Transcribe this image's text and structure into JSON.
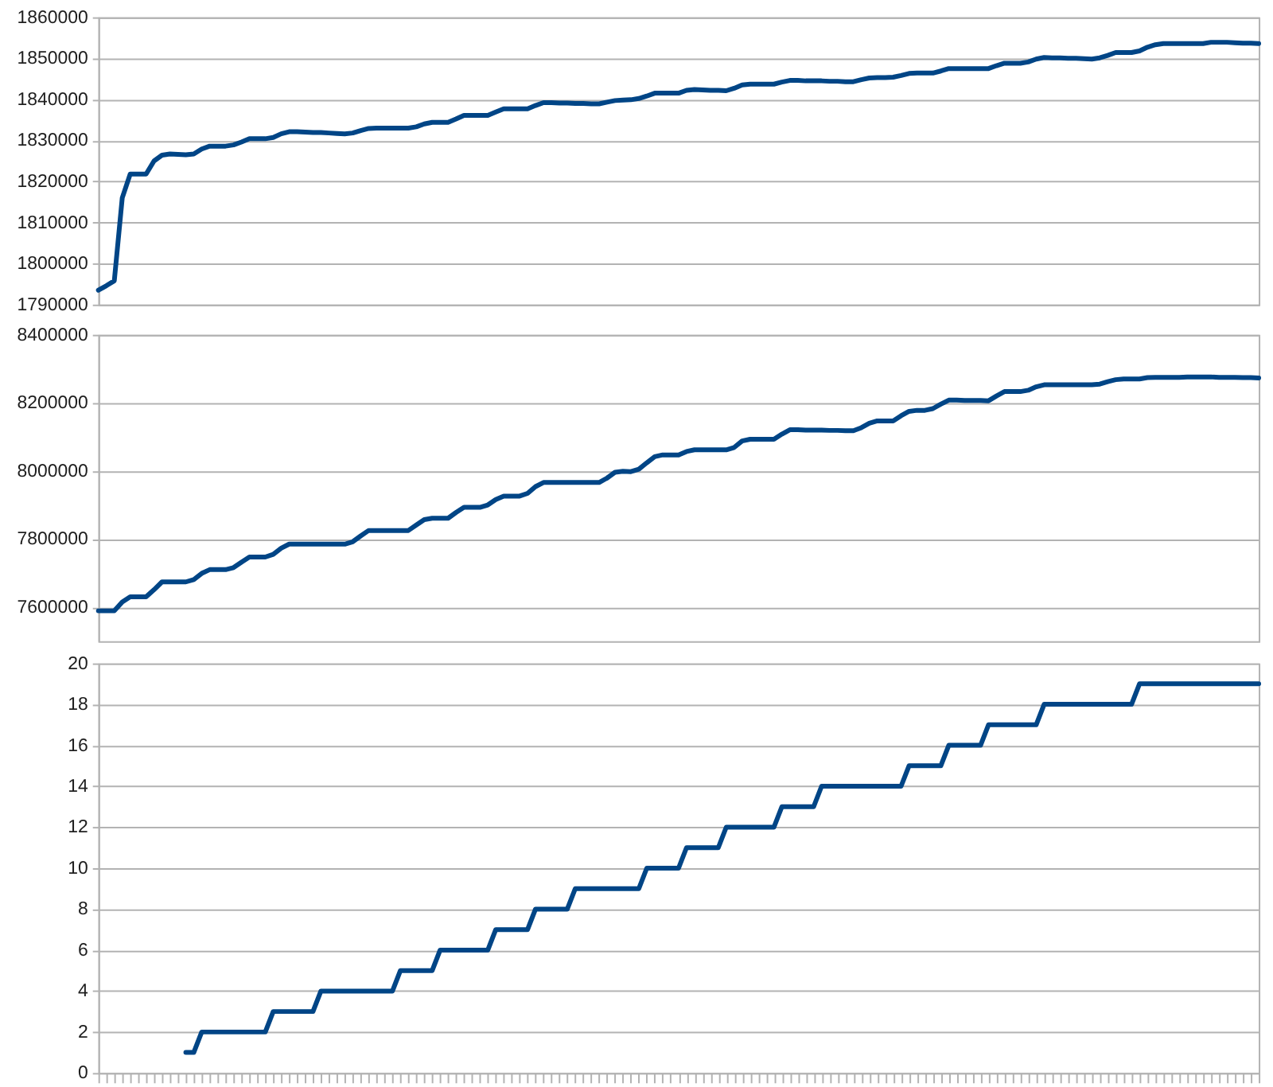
{
  "chart_data": [
    {
      "type": "line",
      "categories": [
        null,
        null,
        null,
        null,
        null,
        null,
        null,
        null,
        null,
        null,
        null,
        null,
        null,
        null,
        null,
        null,
        null,
        null,
        null,
        null,
        null,
        null,
        null,
        null,
        null,
        null,
        null,
        null,
        null,
        null,
        null,
        null,
        null,
        null,
        null,
        null,
        null,
        null,
        null,
        null,
        null,
        null,
        null,
        null,
        null,
        null,
        null,
        null,
        null,
        null,
        null,
        null,
        null,
        null,
        null,
        null,
        null,
        null,
        null,
        null,
        null,
        null,
        null,
        null,
        null,
        null,
        null,
        null,
        null,
        null,
        null,
        null,
        null,
        null,
        null,
        null,
        null,
        null,
        null,
        null,
        null,
        null,
        null,
        null,
        null,
        null,
        null,
        null,
        null,
        null,
        null,
        null,
        null,
        null,
        null,
        null,
        null,
        null,
        null,
        null,
        null,
        null,
        null,
        null,
        null,
        null,
        null,
        null,
        null,
        null,
        null,
        null,
        null,
        null,
        null,
        null,
        null,
        null,
        null,
        null,
        null,
        null,
        null,
        null,
        null,
        null,
        null,
        null,
        null,
        null,
        null,
        null,
        null,
        null,
        null,
        null,
        null,
        null,
        null,
        null,
        null,
        null,
        null,
        null,
        null,
        null,
        null
      ],
      "series": [
        {
          "color": "#004586",
          "values": [
            1793500,
            1794600,
            1795800,
            1816000,
            1821800,
            1821800,
            1821800,
            1825000,
            1826400,
            1826700,
            1826600,
            1826500,
            1826700,
            1827900,
            1828600,
            1828600,
            1828600,
            1828900,
            1829600,
            1830400,
            1830400,
            1830400,
            1830700,
            1831600,
            1832100,
            1832100,
            1832000,
            1831900,
            1831900,
            1831800,
            1831700,
            1831600,
            1831800,
            1832400,
            1832900,
            1833000,
            1833000,
            1833000,
            1833000,
            1833000,
            1833300,
            1834000,
            1834400,
            1834400,
            1834400,
            1835200,
            1836100,
            1836100,
            1836100,
            1836100,
            1836900,
            1837700,
            1837700,
            1837700,
            1837700,
            1838500,
            1839200,
            1839200,
            1839100,
            1839100,
            1839000,
            1839000,
            1838900,
            1838900,
            1839300,
            1839700,
            1839800,
            1839900,
            1840200,
            1840800,
            1841500,
            1841500,
            1841500,
            1841500,
            1842200,
            1842400,
            1842300,
            1842200,
            1842200,
            1842100,
            1842700,
            1843500,
            1843700,
            1843700,
            1843700,
            1843700,
            1844200,
            1844600,
            1844600,
            1844500,
            1844500,
            1844500,
            1844400,
            1844400,
            1844300,
            1844300,
            1844800,
            1845200,
            1845300,
            1845300,
            1845400,
            1845800,
            1846300,
            1846400,
            1846400,
            1846400,
            1846900,
            1847500,
            1847500,
            1847500,
            1847500,
            1847500,
            1847500,
            1848200,
            1848800,
            1848800,
            1848800,
            1849100,
            1849800,
            1850200,
            1850100,
            1850100,
            1850000,
            1850000,
            1849900,
            1849800,
            1850100,
            1850700,
            1851400,
            1851400,
            1851400,
            1851800,
            1852700,
            1853300,
            1853600,
            1853600,
            1853600,
            1853600,
            1853600,
            1853600,
            1853900,
            1853900,
            1853900,
            1853800,
            1853700,
            1853700,
            1853600
          ]
        }
      ],
      "ylim": [
        1790000,
        1860000
      ],
      "yticks": [
        1790000,
        1800000,
        1810000,
        1820000,
        1830000,
        1840000,
        1850000,
        1860000
      ],
      "grid": "y",
      "tick_labels": "y"
    },
    {
      "type": "line",
      "categories": [
        null,
        null,
        null,
        null,
        null,
        null,
        null,
        null,
        null,
        null,
        null,
        null,
        null,
        null,
        null,
        null,
        null,
        null,
        null,
        null,
        null,
        null,
        null,
        null,
        null,
        null,
        null,
        null,
        null,
        null,
        null,
        null,
        null,
        null,
        null,
        null,
        null,
        null,
        null,
        null,
        null,
        null,
        null,
        null,
        null,
        null,
        null,
        null,
        null,
        null,
        null,
        null,
        null,
        null,
        null,
        null,
        null,
        null,
        null,
        null,
        null,
        null,
        null,
        null,
        null,
        null,
        null,
        null,
        null,
        null,
        null,
        null,
        null,
        null,
        null,
        null,
        null,
        null,
        null,
        null,
        null,
        null,
        null,
        null,
        null,
        null,
        null,
        null,
        null,
        null,
        null,
        null,
        null,
        null,
        null,
        null,
        null,
        null,
        null,
        null,
        null,
        null,
        null,
        null,
        null,
        null,
        null,
        null,
        null,
        null,
        null,
        null,
        null,
        null,
        null,
        null,
        null,
        null,
        null,
        null,
        null,
        null,
        null,
        null,
        null,
        null,
        null,
        null,
        null,
        null,
        null,
        null,
        null,
        null,
        null,
        null,
        null,
        null,
        null,
        null,
        null,
        null,
        null,
        null,
        null,
        null,
        null
      ],
      "series": [
        {
          "color": "#004586",
          "values": [
            7589000,
            7589000,
            7589000,
            7615000,
            7630000,
            7630000,
            7630000,
            7651000,
            7674000,
            7674000,
            7674000,
            7674000,
            7681000,
            7699000,
            7710000,
            7710000,
            7710000,
            7716000,
            7732000,
            7747000,
            7747000,
            7747000,
            7755000,
            7773000,
            7785000,
            7785000,
            7785000,
            7785000,
            7785000,
            7785000,
            7785000,
            7785000,
            7792000,
            7809000,
            7825000,
            7825000,
            7825000,
            7825000,
            7825000,
            7825000,
            7841000,
            7857000,
            7861000,
            7861000,
            7861000,
            7878000,
            7893000,
            7893000,
            7893000,
            7900000,
            7916000,
            7926000,
            7926000,
            7926000,
            7934000,
            7954000,
            7966000,
            7966000,
            7966000,
            7966000,
            7966000,
            7966000,
            7966000,
            7966000,
            7979000,
            7996000,
            7999000,
            7998000,
            8005000,
            8024000,
            8042000,
            8047000,
            8047000,
            8047000,
            8057000,
            8062000,
            8062000,
            8062000,
            8062000,
            8062000,
            8069000,
            8088000,
            8093000,
            8093000,
            8093000,
            8093000,
            8108000,
            8121000,
            8121000,
            8120000,
            8120000,
            8120000,
            8119000,
            8119000,
            8118000,
            8118000,
            8127000,
            8140000,
            8147000,
            8147000,
            8147000,
            8162000,
            8175000,
            8178000,
            8178000,
            8183000,
            8196000,
            8208000,
            8208000,
            8207000,
            8207000,
            8207000,
            8206000,
            8220000,
            8233000,
            8233000,
            8233000,
            8237000,
            8247000,
            8253000,
            8253000,
            8253000,
            8253000,
            8253000,
            8253000,
            8253000,
            8255000,
            8262000,
            8268000,
            8270000,
            8270000,
            8270000,
            8274000,
            8275000,
            8275000,
            8275000,
            8275000,
            8276000,
            8276000,
            8276000,
            8276000,
            8275000,
            8275000,
            8275000,
            8274000,
            8274000,
            8273000
          ]
        }
      ],
      "ylim": [
        7500000,
        8400000
      ],
      "yticks": [
        7600000,
        7800000,
        8000000,
        8200000,
        8400000
      ],
      "grid": "y",
      "tick_labels": "y"
    },
    {
      "type": "line",
      "categories": [
        null,
        null,
        null,
        null,
        null,
        null,
        null,
        null,
        null,
        null,
        null,
        null,
        null,
        null,
        null,
        null,
        null,
        null,
        null,
        null,
        null,
        null,
        null,
        null,
        null,
        null,
        null,
        null,
        null,
        null,
        null,
        null,
        null,
        null,
        null,
        null,
        null,
        null,
        null,
        null,
        null,
        null,
        null,
        null,
        null,
        null,
        null,
        null,
        null,
        null,
        null,
        null,
        null,
        null,
        null,
        null,
        null,
        null,
        null,
        null,
        null,
        null,
        null,
        null,
        null,
        null,
        null,
        null,
        null,
        null,
        null,
        null,
        null,
        null,
        null,
        null,
        null,
        null,
        null,
        null,
        null,
        null,
        null,
        null,
        null,
        null,
        null,
        null,
        null,
        null,
        null,
        null,
        null,
        null,
        null,
        null,
        null,
        null,
        null,
        null,
        null,
        null,
        null,
        null,
        null,
        null,
        null,
        null,
        null,
        null,
        null,
        null,
        null,
        null,
        null,
        null,
        null,
        null,
        null,
        null,
        null,
        null,
        null,
        null,
        null,
        null,
        null,
        null,
        null,
        null,
        null,
        null,
        null,
        null,
        null,
        null,
        null,
        null,
        null,
        null,
        null,
        null,
        null,
        null,
        null,
        null,
        null
      ],
      "series": [
        {
          "color": "#004586",
          "values": [
            null,
            null,
            null,
            null,
            null,
            null,
            null,
            null,
            null,
            null,
            null,
            1,
            1,
            2,
            2,
            2,
            2,
            2,
            2,
            2,
            2,
            2,
            3,
            3,
            3,
            3,
            3,
            3,
            4,
            4,
            4,
            4,
            4,
            4,
            4,
            4,
            4,
            4,
            5,
            5,
            5,
            5,
            5,
            6,
            6,
            6,
            6,
            6,
            6,
            6,
            7,
            7,
            7,
            7,
            7,
            8,
            8,
            8,
            8,
            8,
            9,
            9,
            9,
            9,
            9,
            9,
            9,
            9,
            9,
            10,
            10,
            10,
            10,
            10,
            11,
            11,
            11,
            11,
            11,
            12,
            12,
            12,
            12,
            12,
            12,
            12,
            13,
            13,
            13,
            13,
            13,
            14,
            14,
            14,
            14,
            14,
            14,
            14,
            14,
            14,
            14,
            14,
            15,
            15,
            15,
            15,
            15,
            16,
            16,
            16,
            16,
            16,
            17,
            17,
            17,
            17,
            17,
            17,
            17,
            18,
            18,
            18,
            18,
            18,
            18,
            18,
            18,
            18,
            18,
            18,
            18,
            19,
            19,
            19,
            19,
            19,
            19,
            19,
            19,
            19,
            19,
            19,
            19,
            19,
            19,
            19,
            19
          ]
        }
      ],
      "ylim": [
        0,
        20
      ],
      "yticks": [
        0,
        2,
        4,
        6,
        8,
        10,
        12,
        14,
        16,
        18,
        20
      ],
      "grid": "y",
      "tick_labels": "y"
    }
  ]
}
